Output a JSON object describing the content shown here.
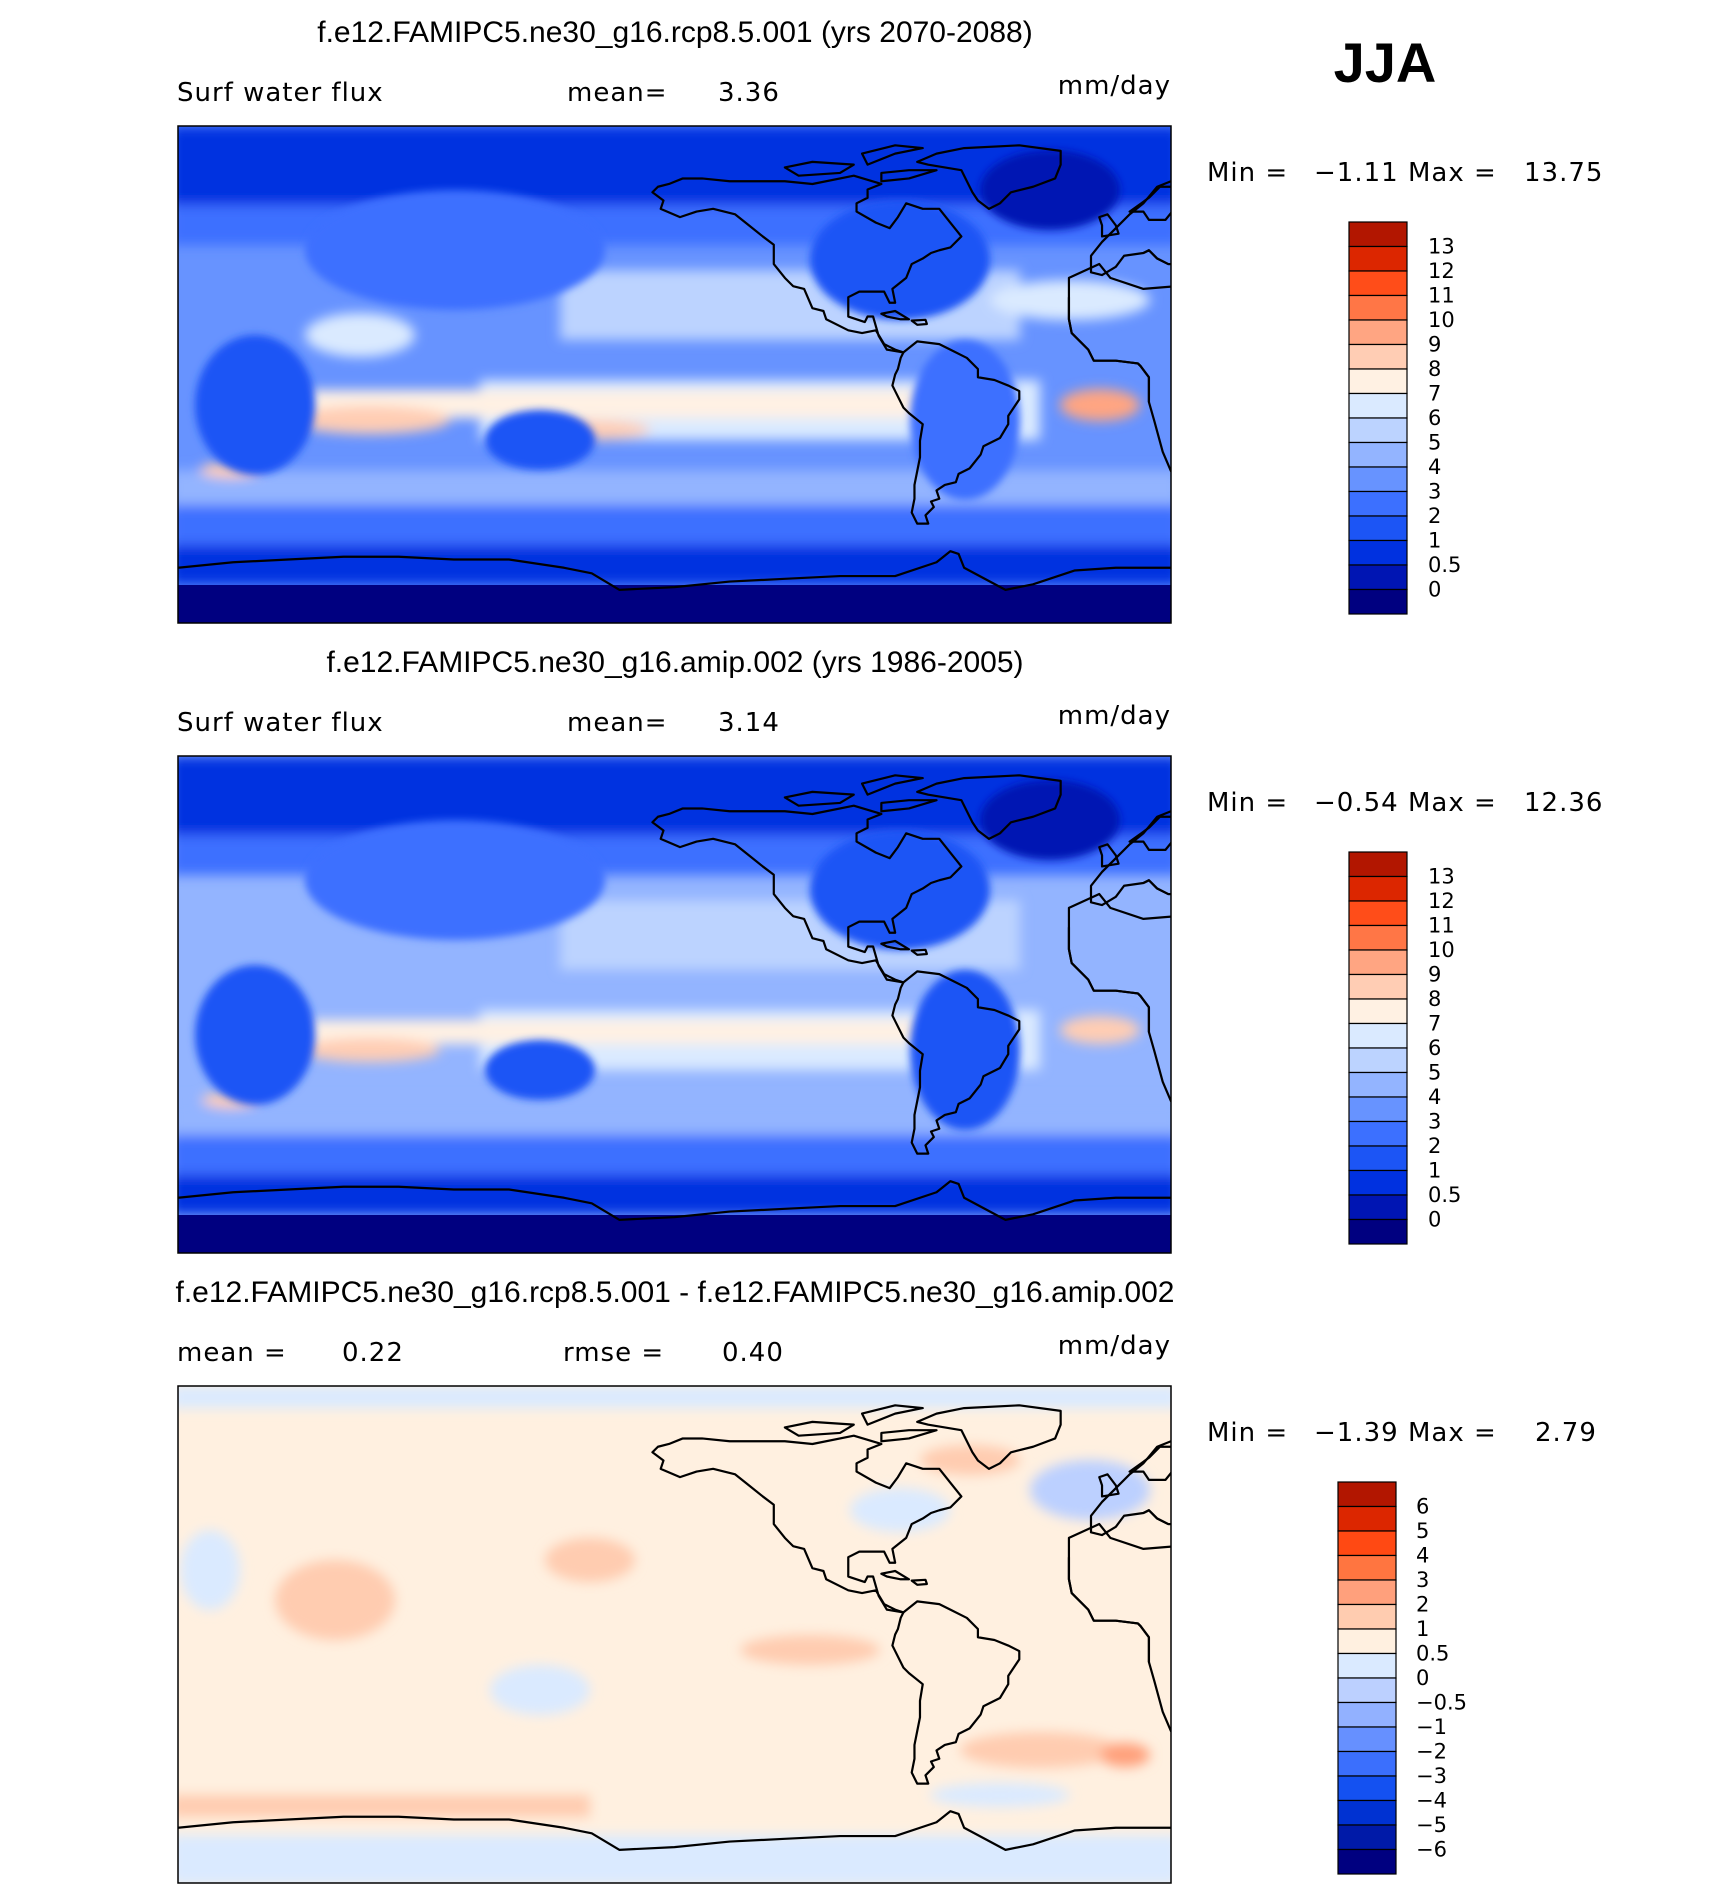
{
  "season": "JJA",
  "colors": {
    "fields": [
      "#000080",
      "#0015b3",
      "#0031e0",
      "#1c55f5",
      "#3c70ff",
      "#6793ff",
      "#93b4ff",
      "#bcd3ff",
      "#daeaff",
      "#fff1e3",
      "#ffcdb4",
      "#ffa582",
      "#ff7646",
      "#ff4d19",
      "#dc2600",
      "#b21600",
      "#7e0000"
    ],
    "diff": [
      "#000080",
      "#001aa8",
      "#0032d2",
      "#1451f1",
      "#3b6ffd",
      "#6690ff",
      "#92b1ff",
      "#bcd0ff",
      "#daeaff",
      "#fff0e0",
      "#ffccb0",
      "#ffa07c",
      "#ff7540",
      "#ff4913",
      "#dc2600",
      "#b21600",
      "#7e0000"
    ]
  },
  "panels": [
    {
      "id": "rcp85",
      "title": "f.e12.FAMIPC5.ne30_g16.rcp8.5.001 (yrs 2070-2088)",
      "left_label": "Surf water flux",
      "mid_label": "mean=",
      "mid_value": "3.36",
      "units": "mm/day",
      "min_label": "Min =",
      "min_value": "−1.11",
      "max_label": "Max =",
      "max_value": "13.75",
      "levels": [
        "13",
        "12",
        "11",
        "10",
        "9",
        "8",
        "7",
        "6",
        "5",
        "4",
        "3",
        "2",
        "1",
        "0.5",
        "0"
      ],
      "chart_data": {
        "type": "heatmap",
        "variable": "Surf water flux",
        "units": "mm/day",
        "mean": 3.36,
        "min": -1.11,
        "max": 13.75,
        "contour_levels": [
          0,
          0.5,
          1,
          2,
          3,
          4,
          5,
          6,
          7,
          8,
          9,
          10,
          11,
          12,
          13
        ]
      }
    },
    {
      "id": "amip",
      "title": "f.e12.FAMIPC5.ne30_g16.amip.002 (yrs 1986-2005)",
      "left_label": "Surf water flux",
      "mid_label": "mean=",
      "mid_value": "3.14",
      "units": "mm/day",
      "min_label": "Min =",
      "min_value": "−0.54",
      "max_label": "Max =",
      "max_value": "12.36",
      "levels": [
        "13",
        "12",
        "11",
        "10",
        "9",
        "8",
        "7",
        "6",
        "5",
        "4",
        "3",
        "2",
        "1",
        "0.5",
        "0"
      ],
      "chart_data": {
        "type": "heatmap",
        "variable": "Surf water flux",
        "units": "mm/day",
        "mean": 3.14,
        "min": -0.54,
        "max": 12.36,
        "contour_levels": [
          0,
          0.5,
          1,
          2,
          3,
          4,
          5,
          6,
          7,
          8,
          9,
          10,
          11,
          12,
          13
        ]
      }
    },
    {
      "id": "diff",
      "title": "f.e12.FAMIPC5.ne30_g16.rcp8.5.001 - f.e12.FAMIPC5.ne30_g16.amip.002",
      "left_label": "mean =",
      "left_value": "0.22",
      "mid_label": "rmse =",
      "mid_value": "0.40",
      "units": "mm/day",
      "min_label": "Min =",
      "min_value": "−1.39",
      "max_label": "Max =",
      "max_value": "2.79",
      "levels": [
        "6",
        "5",
        "4",
        "3",
        "2",
        "1",
        "0.5",
        "0",
        "−0.5",
        "−1",
        "−2",
        "−3",
        "−4",
        "−5",
        "−6"
      ],
      "chart_data": {
        "type": "heatmap",
        "units": "mm/day",
        "mean": 0.22,
        "rmse": 0.4,
        "min": -1.39,
        "max": 2.79,
        "contour_levels": [
          -6,
          -5,
          -4,
          -3,
          -2,
          -1,
          -0.5,
          0,
          0.5,
          1,
          2,
          3,
          4,
          5,
          6
        ]
      }
    }
  ]
}
